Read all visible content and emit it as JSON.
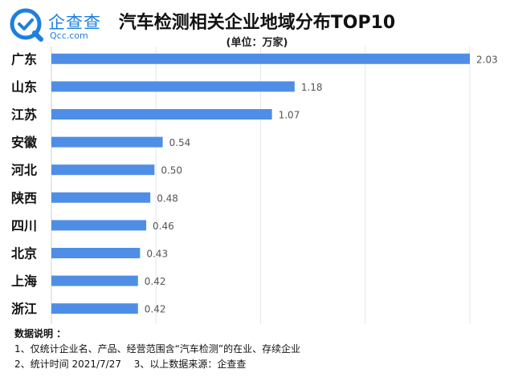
{
  "header": {
    "logo_name": "企查查",
    "logo_sub": "Qcc.com",
    "title": "汽车检测相关企业地域分布TOP10",
    "unit": "(单位：万家)"
  },
  "notes": {
    "heading": "数据说明 ：",
    "line1": "1、仅统计企业名、产品、经营范围含“汽车检测”的在业、存续企业",
    "line2": "2、统计时间 2021/7/27　 3、以上数据来源：企查查"
  },
  "colors": {
    "bar": "#4f8ee6",
    "brand": "#1f7fe0",
    "grid": "#e6e6e6"
  },
  "chart_data": {
    "type": "bar",
    "orientation": "horizontal",
    "title": "汽车检测相关企业地域分布TOP10",
    "unit": "(单位：万家)",
    "categories": [
      "广东",
      "山东",
      "江苏",
      "安徽",
      "河北",
      "陕西",
      "四川",
      "北京",
      "上海",
      "浙江"
    ],
    "values": [
      2.03,
      1.18,
      1.07,
      0.54,
      0.5,
      0.48,
      0.46,
      0.43,
      0.42,
      0.42
    ],
    "value_labels": [
      "2.03",
      "1.18",
      "1.07",
      "0.54",
      "0.50",
      "0.48",
      "0.46",
      "0.43",
      "0.42",
      "0.42"
    ],
    "xlim": [
      0,
      2.03
    ],
    "grid": true
  }
}
